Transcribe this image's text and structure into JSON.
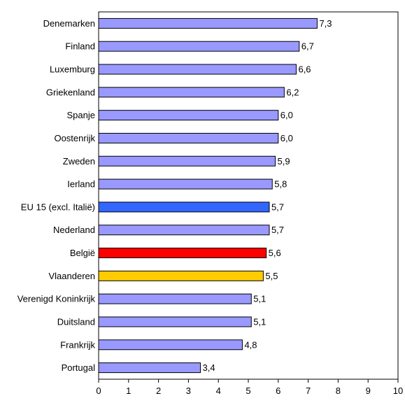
{
  "chart_data": {
    "type": "bar",
    "orientation": "horizontal",
    "title": "",
    "xlabel": "",
    "ylabel": "",
    "xlim": [
      0,
      10
    ],
    "xticks": [
      "0",
      "1",
      "2",
      "3",
      "4",
      "5",
      "6",
      "7",
      "8",
      "9",
      "10"
    ],
    "grid": false,
    "legend": "none",
    "categories": [
      "Denemarken",
      "Finland",
      "Luxemburg",
      "Griekenland",
      "Spanje",
      "Oostenrijk",
      "Zweden",
      "Ierland",
      "EU 15 (excl. Italië)",
      "Nederland",
      "België",
      "Vlaanderen",
      "Verenigd Koninkrijk",
      "Duitsland",
      "Frankrijk",
      "Portugal"
    ],
    "values": [
      7.3,
      6.7,
      6.6,
      6.2,
      6.0,
      6.0,
      5.9,
      5.8,
      5.7,
      5.7,
      5.6,
      5.5,
      5.1,
      5.1,
      4.8,
      3.4
    ],
    "value_labels": [
      "7,3",
      "6,7",
      "6,6",
      "6,2",
      "6,0",
      "6,0",
      "5,9",
      "5,8",
      "5,7",
      "5,7",
      "5,6",
      "5,5",
      "5,1",
      "5,1",
      "4,8",
      "3,4"
    ],
    "bar_colors": [
      "#9999ff",
      "#9999ff",
      "#9999ff",
      "#9999ff",
      "#9999ff",
      "#9999ff",
      "#9999ff",
      "#9999ff",
      "#3366ff",
      "#9999ff",
      "#ff0000",
      "#ffcc00",
      "#9999ff",
      "#9999ff",
      "#9999ff",
      "#9999ff"
    ]
  }
}
